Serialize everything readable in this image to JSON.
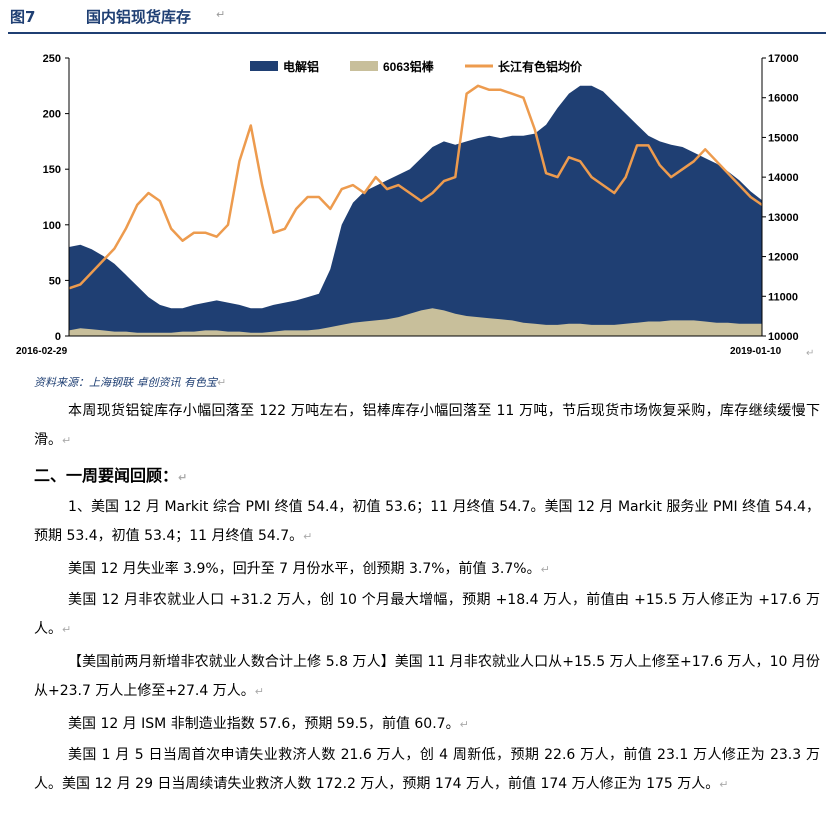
{
  "figure": {
    "number": "图7",
    "title": "国内铝现货库存",
    "mark": "↵"
  },
  "chart_data": {
    "type": "area",
    "title": "国内铝现货库存",
    "x_start_label": "2016-02-29",
    "x_end_label": "2019-01-10",
    "left_axis": {
      "min": 0,
      "max": 250,
      "ticks": [
        "0",
        "50",
        "100",
        "150",
        "200",
        "250"
      ]
    },
    "right_axis": {
      "min": 10000,
      "max": 17000,
      "ticks": [
        "10000",
        "11000",
        "12000",
        "13000",
        "14000",
        "15000",
        "16000",
        "17000"
      ]
    },
    "series": [
      {
        "name": "电解铝",
        "kind": "area",
        "axis": "left",
        "color": "#1f3f73",
        "values": [
          80,
          82,
          78,
          72,
          65,
          55,
          45,
          35,
          28,
          25,
          25,
          28,
          30,
          32,
          30,
          28,
          25,
          25,
          28,
          30,
          32,
          35,
          38,
          60,
          100,
          120,
          130,
          135,
          140,
          145,
          150,
          160,
          170,
          175,
          172,
          175,
          178,
          180,
          178,
          180,
          180,
          182,
          190,
          205,
          218,
          225,
          225,
          220,
          210,
          200,
          190,
          180,
          175,
          172,
          170,
          165,
          160,
          155,
          148,
          140,
          130,
          122
        ]
      },
      {
        "name": "6063铝棒",
        "kind": "area",
        "axis": "left",
        "color": "#c8bf9b",
        "values": [
          5,
          7,
          6,
          5,
          4,
          4,
          3,
          3,
          3,
          3,
          4,
          4,
          5,
          5,
          4,
          4,
          3,
          3,
          4,
          5,
          5,
          5,
          6,
          8,
          10,
          12,
          13,
          14,
          15,
          17,
          20,
          23,
          25,
          23,
          20,
          18,
          17,
          16,
          15,
          14,
          12,
          11,
          10,
          10,
          11,
          11,
          10,
          10,
          10,
          11,
          12,
          13,
          13,
          14,
          14,
          14,
          13,
          12,
          12,
          11,
          11,
          11
        ]
      },
      {
        "name": "长江有色铝均价",
        "kind": "line",
        "axis": "right",
        "color": "#ed9b4e",
        "values": [
          11200,
          11300,
          11600,
          11900,
          12200,
          12700,
          13300,
          13600,
          13400,
          12700,
          12400,
          12600,
          12600,
          12500,
          12800,
          14400,
          15300,
          13800,
          12600,
          12700,
          13200,
          13500,
          13500,
          13200,
          13700,
          13800,
          13600,
          14000,
          13700,
          13800,
          13600,
          13400,
          13600,
          13900,
          14000,
          16100,
          16300,
          16200,
          16200,
          16100,
          16000,
          15200,
          14100,
          14000,
          14500,
          14400,
          14000,
          13800,
          13600,
          14000,
          14800,
          14800,
          14300,
          14000,
          14200,
          14400,
          14700,
          14400,
          14100,
          13800,
          13500,
          13300
        ]
      }
    ]
  },
  "source": "资料来源：上海钢联 卓创资讯 有色宝",
  "paragraph_intro": "本周现货铝锭库存小幅回落至 122 万吨左右，铝棒库存小幅回落至 11 万吨，节后现货市场恢复采购，库存继续缓慢下滑。",
  "section_heading": "二、一周要闻回顾：",
  "news": [
    "1、美国 12 月 Markit 综合 PMI 终值 54.4，初值 53.6；11 月终值 54.7。美国 12 月 Markit 服务业 PMI 终值 54.4，预期 53.4，初值 53.4；11 月终值 54.7。",
    "美国 12 月失业率 3.9%，回升至 7 月份水平，创预期 3.7%，前值 3.7%。",
    "美国 12 月非农就业人口 +31.2 万人，创 10 个月最大增幅，预期 +18.4 万人，前值由 +15.5 万人修正为 +17.6 万人。",
    "【美国前两月新增非农就业人数合计上修 5.8 万人】美国 11 月非农就业人口从+15.5 万人上修至+17.6 万人，10 月份从+23.7 万人上修至+27.4 万人。",
    "美国 12 月 ISM 非制造业指数 57.6，预期 59.5，前值 60.7。",
    "美国 1 月 5 日当周首次申请失业救济人数 21.6 万人，创 4 周新低，预期 22.6 万人，前值 23.1 万人修正为 23.3 万人。美国 12 月 29 日当周续请失业救济人数 172.2 万人，预期 174 万人，前值 174 万人修正为 175 万人。"
  ],
  "return_mark": "↵"
}
